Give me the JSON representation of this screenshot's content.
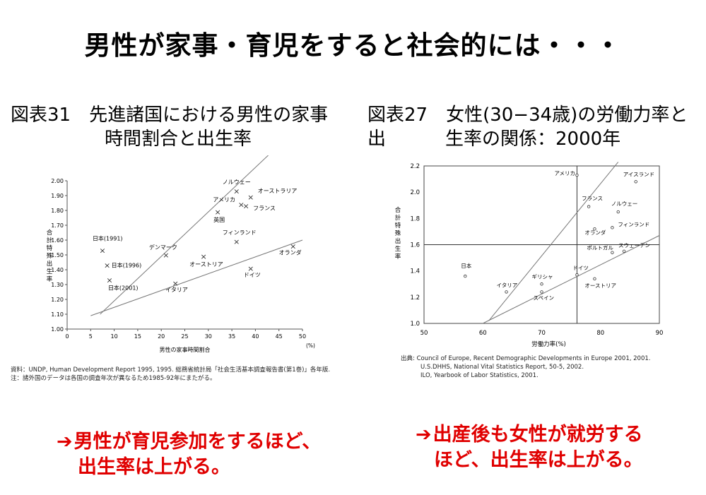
{
  "page_title": "男性が家事・育児をすると社会的には・・・",
  "left_panel": {
    "title_line1": "図表31　先進諸国における男性の家事",
    "title_line2": "時間割合と出生率",
    "source_line1": "資料：UNDP, Human Development Report 1995, 1995. 総務省統計局「社会生活基本調査報告書(第1巻)」各年版.",
    "source_line2": "注：諸外国のデータは各国の調査年次が異なるため1985-92年にまたがる。",
    "conclusion_line1": "男性が育児参加をするほど、",
    "conclusion_line2": "出生率は上がる。"
  },
  "right_panel": {
    "title_line1": "図表27　女性(30−34歳)の労働力率と出",
    "title_line2": "生率の関係：2000年",
    "source_line1": "出典: Council of Europe, Recent Demographic Developments in Europe 2001, 2001.",
    "source_line2": "U.S.DHHS, National Vital Statistics Report, 50-5, 2002.",
    "source_line3": "ILO, Yearbook of Labor Statistics, 2001.",
    "conclusion_line1": "出産後も女性が就労する",
    "conclusion_line2": "ほど、出生率は上がる。"
  },
  "arrow_glyph": "➔",
  "accent_color": "#e00000",
  "chart_data": [
    {
      "type": "scatter",
      "xlabel": "男性の家事時間割合",
      "x_unit": "(%)",
      "ylabel": "合計特殊出生率",
      "xlim": [
        0,
        50
      ],
      "ylim": [
        1.0,
        2.0
      ],
      "x_ticks": [
        0,
        5,
        10,
        15,
        20,
        25,
        30,
        35,
        40,
        45,
        50
      ],
      "y_ticks": [
        1.0,
        1.1,
        1.2,
        1.3,
        1.4,
        1.5,
        1.6,
        1.7,
        1.8,
        1.9,
        2.0
      ],
      "marker": "×",
      "points": [
        {
          "label": "日本(1991)",
          "x": 7.5,
          "y": 1.53
        },
        {
          "label": "日本(1996)",
          "x": 8.5,
          "y": 1.43
        },
        {
          "label": "日本(2001)",
          "x": 9.0,
          "y": 1.33
        },
        {
          "label": "デンマーク",
          "x": 21,
          "y": 1.5
        },
        {
          "label": "イタリア",
          "x": 23,
          "y": 1.31
        },
        {
          "label": "オーストリア",
          "x": 29,
          "y": 1.49
        },
        {
          "label": "英国",
          "x": 32,
          "y": 1.79
        },
        {
          "label": "アメリカ",
          "x": 37,
          "y": 1.84
        },
        {
          "label": "ノルウェー",
          "x": 36,
          "y": 1.93
        },
        {
          "label": "オーストラリア",
          "x": 39,
          "y": 1.89
        },
        {
          "label": "フランス",
          "x": 38,
          "y": 1.83
        },
        {
          "label": "フィンランド",
          "x": 36,
          "y": 1.59
        },
        {
          "label": "オランダ",
          "x": 48,
          "y": 1.56
        },
        {
          "label": "ドイツ",
          "x": 39,
          "y": 1.41
        }
      ],
      "trend_lines": [
        {
          "from": [
            7,
            1.1
          ],
          "to": [
            43,
            2.18
          ]
        },
        {
          "from": [
            5,
            1.09
          ],
          "to": [
            50,
            1.6
          ]
        }
      ]
    },
    {
      "type": "scatter",
      "xlabel": "労働力率(%)",
      "ylabel": "合計特殊出生率",
      "xlim": [
        50,
        90
      ],
      "ylim": [
        1.0,
        2.2
      ],
      "x_ticks": [
        50,
        60,
        70,
        80,
        90
      ],
      "y_ticks": [
        1.0,
        1.2,
        1.4,
        1.6,
        1.8,
        2.0,
        2.2
      ],
      "marker": "○",
      "points": [
        {
          "label": "アメリカ",
          "x": 76,
          "y": 2.13
        },
        {
          "label": "アイスランド",
          "x": 86,
          "y": 2.08
        },
        {
          "label": "フランス",
          "x": 78,
          "y": 1.89
        },
        {
          "label": "ノルウェー",
          "x": 83,
          "y": 1.85
        },
        {
          "label": "フィンランド",
          "x": 82,
          "y": 1.73
        },
        {
          "label": "オランダ",
          "x": 79,
          "y": 1.72
        },
        {
          "label": "ポルトガル",
          "x": 82,
          "y": 1.54
        },
        {
          "label": "スウェーデン",
          "x": 84,
          "y": 1.55
        },
        {
          "label": "ドイツ",
          "x": 76,
          "y": 1.37
        },
        {
          "label": "オーストリア",
          "x": 79,
          "y": 1.34
        },
        {
          "label": "日本",
          "x": 57,
          "y": 1.36
        },
        {
          "label": "イタリア",
          "x": 64,
          "y": 1.24
        },
        {
          "label": "ギリシャ",
          "x": 70,
          "y": 1.3
        },
        {
          "label": "スペイン",
          "x": 70,
          "y": 1.24
        }
      ],
      "reference_lines": [
        {
          "orientation": "horizontal",
          "value": 1.6
        },
        {
          "orientation": "vertical",
          "value": 76
        }
      ],
      "trend_lines": [
        {
          "from": [
            61,
            1.02
          ],
          "to": [
            83,
            2.23
          ]
        },
        {
          "from": [
            60,
            1.0
          ],
          "to": [
            90,
            1.67
          ]
        }
      ]
    }
  ]
}
